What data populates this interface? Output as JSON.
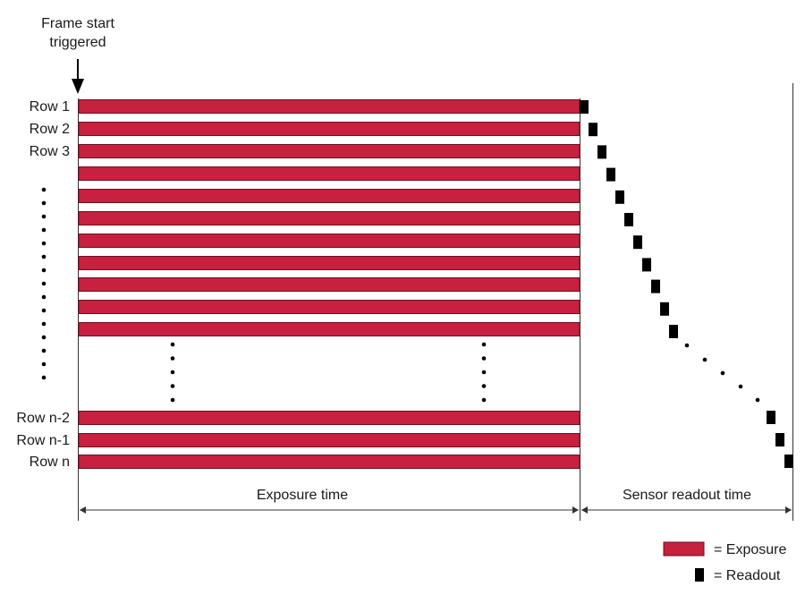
{
  "trigger": {
    "line1": "Frame start",
    "line2": "triggered"
  },
  "rows": [
    {
      "label": "Row 1"
    },
    {
      "label": "Row 2"
    },
    {
      "label": "Row 3"
    },
    {
      "label": ""
    },
    {
      "label": ""
    },
    {
      "label": ""
    },
    {
      "label": ""
    },
    {
      "label": ""
    },
    {
      "label": ""
    },
    {
      "label": ""
    },
    {
      "label": ""
    },
    {
      "label": "Row n-2"
    },
    {
      "label": "Row n-1"
    },
    {
      "label": "Row n"
    }
  ],
  "spans": {
    "exposure": "Exposure time",
    "readout": "Sensor readout time"
  },
  "legend": {
    "exposure": "= Exposure",
    "readout": "= Readout"
  },
  "colors": {
    "exposure": "#c8203f",
    "readout": "#000000",
    "lines": "#333333"
  }
}
